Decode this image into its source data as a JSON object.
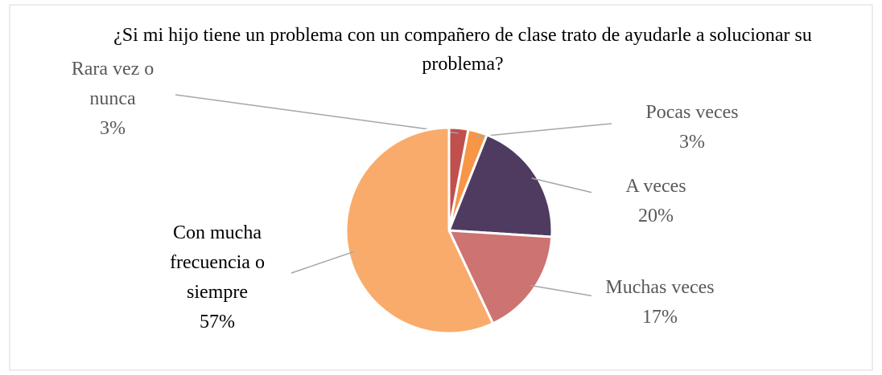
{
  "chart_data": {
    "type": "pie",
    "title": "¿Si mi hijo tiene un problema con un compañero de clase trato de ayudarle a solucionar su problema?",
    "categories": [
      "Rara vez o nunca",
      "Pocas veces",
      "A veces",
      "Muchas veces",
      "Con mucha frecuencia o siempre"
    ],
    "values": [
      3,
      3,
      20,
      17,
      57
    ],
    "value_labels": [
      "3%",
      "3%",
      "20%",
      "17%",
      "57%"
    ],
    "colors": [
      "#c0504d",
      "#f79646",
      "#4f3b60",
      "#cd7371",
      "#f9ab6b"
    ]
  }
}
